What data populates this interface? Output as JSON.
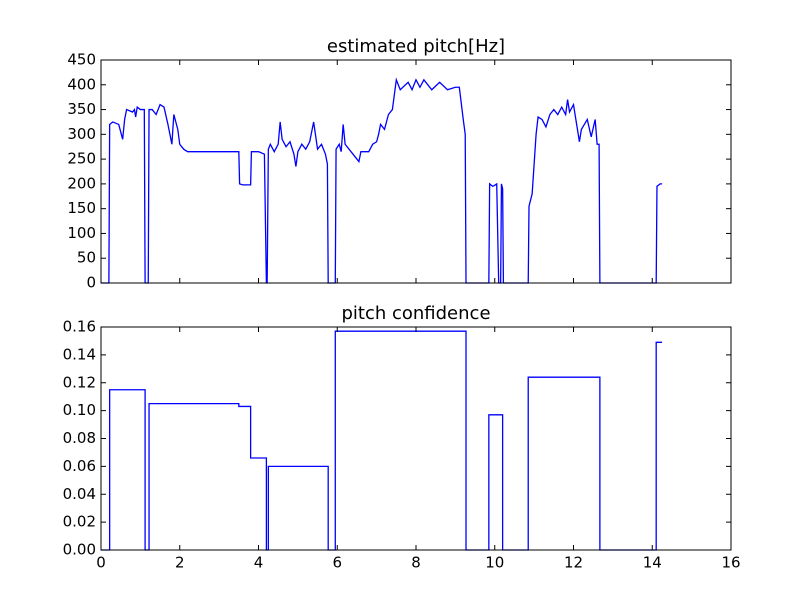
{
  "chart_data": [
    {
      "type": "line",
      "title": "estimated pitch[Hz]",
      "color": "#0000ff",
      "x": [
        0,
        0.2,
        0.22,
        0.3,
        0.45,
        0.55,
        0.6,
        0.65,
        0.8,
        0.85,
        0.88,
        0.92,
        1.0,
        1.1,
        1.12,
        1.2,
        1.22,
        1.3,
        1.4,
        1.5,
        1.6,
        1.7,
        1.8,
        1.85,
        1.95,
        2.0,
        2.1,
        2.2,
        2.5,
        3.0,
        3.5,
        3.52,
        3.6,
        3.8,
        3.82,
        4.0,
        4.15,
        4.2,
        4.22,
        4.25,
        4.3,
        4.4,
        4.5,
        4.55,
        4.6,
        4.7,
        4.8,
        4.9,
        4.95,
        5.0,
        5.1,
        5.2,
        5.3,
        5.4,
        5.5,
        5.6,
        5.7,
        5.75,
        5.77,
        5.95,
        5.97,
        6.05,
        6.1,
        6.15,
        6.2,
        6.4,
        6.55,
        6.6,
        6.8,
        6.9,
        7.0,
        7.05,
        7.1,
        7.2,
        7.3,
        7.4,
        7.5,
        7.6,
        7.8,
        7.9,
        8.0,
        8.1,
        8.2,
        8.4,
        8.6,
        8.8,
        9.0,
        9.1,
        9.2,
        9.25,
        9.27,
        9.85,
        9.87,
        9.95,
        10.05,
        10.1,
        10.15,
        10.17,
        10.2,
        10.22,
        10.85,
        10.87,
        10.95,
        11.05,
        11.1,
        11.2,
        11.3,
        11.4,
        11.5,
        11.6,
        11.7,
        11.8,
        11.85,
        11.9,
        12.0,
        12.1,
        12.15,
        12.2,
        12.35,
        12.45,
        12.55,
        12.6,
        12.65,
        12.67,
        14.1,
        14.12,
        14.2,
        14.25
      ],
      "values": [
        0,
        0,
        320,
        325,
        320,
        290,
        330,
        350,
        345,
        350,
        335,
        355,
        350,
        350,
        0,
        0,
        350,
        350,
        340,
        360,
        355,
        320,
        280,
        340,
        310,
        280,
        270,
        265,
        265,
        265,
        265,
        200,
        198,
        198,
        265,
        265,
        260,
        0,
        0,
        270,
        280,
        265,
        280,
        325,
        290,
        275,
        285,
        260,
        235,
        265,
        280,
        270,
        285,
        325,
        270,
        280,
        260,
        240,
        0,
        0,
        270,
        280,
        265,
        320,
        280,
        260,
        245,
        265,
        265,
        280,
        285,
        300,
        320,
        310,
        340,
        350,
        410,
        390,
        405,
        390,
        410,
        395,
        410,
        390,
        405,
        390,
        395,
        395,
        330,
        300,
        0,
        0,
        200,
        195,
        200,
        0,
        0,
        200,
        190,
        0,
        0,
        155,
        180,
        300,
        335,
        330,
        315,
        340,
        350,
        340,
        355,
        340,
        370,
        345,
        360,
        310,
        285,
        310,
        330,
        295,
        330,
        280,
        280,
        0,
        0,
        195,
        200,
        200
      ],
      "xlim": [
        0,
        16
      ],
      "xticks": [
        0,
        2,
        4,
        6,
        8,
        10,
        12,
        14,
        16
      ],
      "ylim": [
        0,
        450
      ],
      "yticks": [
        0,
        50,
        100,
        150,
        200,
        250,
        300,
        350,
        400,
        450
      ]
    },
    {
      "type": "line",
      "title": "pitch confidence",
      "color": "#0000ff",
      "x": [
        0,
        0.22,
        0.22,
        1.12,
        1.12,
        1.22,
        1.22,
        3.5,
        3.5,
        3.8,
        3.8,
        4.2,
        4.2,
        4.25,
        4.25,
        5.77,
        5.77,
        5.95,
        5.95,
        9.27,
        9.27,
        9.85,
        9.85,
        10.2,
        10.2,
        10.85,
        10.85,
        12.67,
        12.67,
        14.1,
        14.1,
        14.25
      ],
      "values": [
        0,
        0,
        0.115,
        0.115,
        0,
        0,
        0.105,
        0.105,
        0.103,
        0.103,
        0.066,
        0.066,
        0,
        0,
        0.06,
        0.06,
        0,
        0,
        0.157,
        0.157,
        0,
        0,
        0.097,
        0.097,
        0,
        0,
        0.124,
        0.124,
        0,
        0,
        0.149,
        0.149
      ],
      "xlim": [
        0,
        16
      ],
      "xticks": [
        0,
        2,
        4,
        6,
        8,
        10,
        12,
        14,
        16
      ],
      "ylim": [
        0,
        0.16
      ],
      "yticks": [
        {
          "value": 0,
          "label": "0.00"
        },
        {
          "value": 0.02,
          "label": "0.02"
        },
        {
          "value": 0.04,
          "label": "0.04"
        },
        {
          "value": 0.06,
          "label": "0.06"
        },
        {
          "value": 0.08,
          "label": "0.08"
        },
        {
          "value": 0.1,
          "label": "0.10"
        },
        {
          "value": 0.12,
          "label": "0.12"
        },
        {
          "value": 0.14,
          "label": "0.14"
        },
        {
          "value": 0.16,
          "label": "0.16"
        }
      ],
      "show_x_labels": true
    }
  ]
}
